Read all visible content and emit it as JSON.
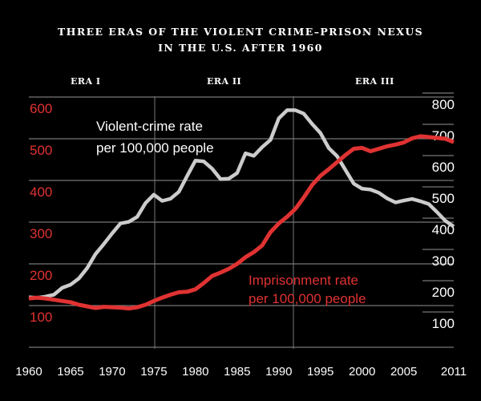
{
  "title": {
    "line1": "THREE ERAS OF THE VIOLENT CRIME–PRISON NEXUS",
    "line2": "IN THE U.S. AFTER 1960"
  },
  "eras": [
    {
      "label": "ERA I"
    },
    {
      "label": "ERA II"
    },
    {
      "label": "ERA III"
    }
  ],
  "annotations": {
    "crime_line1": "Violent-crime rate",
    "crime_line2": "per 100,000 people",
    "prison_line1": "Imprisonment rate",
    "prison_line2": "per 100,000 people"
  },
  "colors": {
    "background": "#000000",
    "crime_line": "#cccccc",
    "prison_line": "#e03232",
    "grid": "#777777"
  },
  "axes": {
    "left_ticks": [
      "600",
      "500",
      "400",
      "300",
      "200",
      "100"
    ],
    "right_ticks": [
      "800",
      "700",
      "600",
      "500",
      "400",
      "300",
      "200",
      "100"
    ],
    "x_ticks": [
      "1960",
      "1965",
      "1970",
      "1975",
      "1980",
      "1985",
      "1990",
      "1995",
      "2000",
      "2005",
      "2011"
    ]
  },
  "chart_data": {
    "type": "line",
    "title": "Three Eras of the Violent Crime–Prison Nexus in the U.S. After 1960",
    "xlabel": "",
    "ylabel_left": "Imprisonment rate per 100,000 people",
    "ylabel_right": "Violent-crime rate per 100,000 people",
    "xlim": [
      1960,
      2011
    ],
    "ylim_left": [
      0,
      600
    ],
    "ylim_right": [
      0,
      800
    ],
    "era_dividers": [
      1975,
      1991
    ],
    "eras": [
      "ERA I",
      "ERA II",
      "ERA III"
    ],
    "grid": true,
    "x": [
      1960,
      1961,
      1962,
      1963,
      1964,
      1965,
      1966,
      1967,
      1968,
      1969,
      1970,
      1971,
      1972,
      1973,
      1974,
      1975,
      1976,
      1977,
      1978,
      1979,
      1980,
      1981,
      1982,
      1983,
      1984,
      1985,
      1986,
      1987,
      1988,
      1989,
      1990,
      1991,
      1992,
      1993,
      1994,
      1995,
      1996,
      1997,
      1998,
      1999,
      2000,
      2001,
      2002,
      2003,
      2004,
      2005,
      2006,
      2007,
      2008,
      2009,
      2010,
      2011
    ],
    "series": [
      {
        "name": "Violent-crime rate per 100,000 people",
        "axis": "right",
        "color": "#cccccc",
        "values": [
          160,
          158,
          162,
          168,
          190,
          200,
          220,
          253,
          298,
          330,
          364,
          396,
          401,
          417,
          461,
          488,
          468,
          475,
          497,
          548,
          597,
          594,
          571,
          538,
          539,
          557,
          620,
          612,
          640,
          663,
          732,
          758,
          758,
          747,
          714,
          685,
          637,
          611,
          567,
          523,
          507,
          504,
          494,
          476,
          463,
          469,
          474,
          467,
          458,
          432,
          404,
          386
        ]
      },
      {
        "name": "Imprisonment rate per 100,000 people",
        "axis": "left",
        "color": "#e03232",
        "values": [
          117,
          119,
          117,
          114,
          111,
          108,
          102,
          98,
          94,
          97,
          96,
          95,
          93,
          96,
          102,
          111,
          119,
          126,
          132,
          133,
          139,
          154,
          171,
          179,
          188,
          200,
          216,
          228,
          244,
          276,
          297,
          313,
          332,
          359,
          389,
          411,
          427,
          444,
          461,
          476,
          478,
          470,
          476,
          482,
          486,
          491,
          501,
          506,
          504,
          502,
          500,
          492
        ]
      }
    ]
  }
}
